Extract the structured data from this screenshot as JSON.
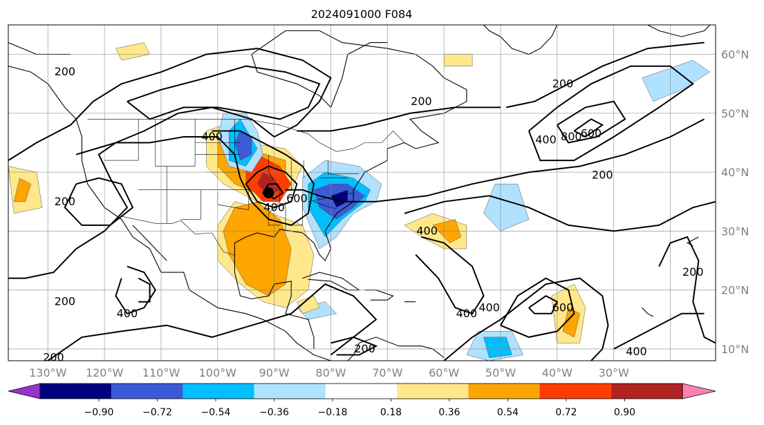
{
  "title": "2024091000 F084",
  "colors": {
    "map_border": "#000000",
    "gridline": "#808080",
    "coast": "#000000",
    "contour": "#000000",
    "marker": "#000000"
  },
  "map": {
    "lon_range": [
      -137,
      -12
    ],
    "lat_range": [
      8,
      65
    ],
    "lon_ticks": [
      {
        "lon": -130,
        "label": "130°W"
      },
      {
        "lon": -120,
        "label": "120°W"
      },
      {
        "lon": -110,
        "label": "110°W"
      },
      {
        "lon": -100,
        "label": "100°W"
      },
      {
        "lon": -90,
        "label": "90°W"
      },
      {
        "lon": -80,
        "label": "80°W"
      },
      {
        "lon": -70,
        "label": "70°W"
      },
      {
        "lon": -60,
        "label": "60°W"
      },
      {
        "lon": -50,
        "label": "50°W"
      },
      {
        "lon": -40,
        "label": "40°W"
      },
      {
        "lon": -30,
        "label": "30°W"
      }
    ],
    "lat_ticks": [
      {
        "lat": 60,
        "label": "60°N"
      },
      {
        "lat": 50,
        "label": "50°N"
      },
      {
        "lat": 40,
        "label": "40°N"
      },
      {
        "lat": 30,
        "label": "30°N"
      },
      {
        "lat": 20,
        "label": "20°N"
      },
      {
        "lat": 10,
        "label": "10°N"
      }
    ],
    "storm_center": {
      "lon": -91,
      "lat": 36.5,
      "icon": "filled-circle-marker"
    },
    "contour_labels": [
      {
        "text": "200",
        "lon": -127,
        "lat": 57
      },
      {
        "text": "200",
        "lon": -127,
        "lat": 35
      },
      {
        "text": "200",
        "lon": -127,
        "lat": 18
      },
      {
        "text": "200",
        "lon": -129,
        "lat": 8.5
      },
      {
        "text": "400",
        "lon": -101,
        "lat": 46
      },
      {
        "text": "400",
        "lon": -90,
        "lat": 34
      },
      {
        "text": "600",
        "lon": -86,
        "lat": 35.5
      },
      {
        "text": "400",
        "lon": -116,
        "lat": 16
      },
      {
        "text": "200",
        "lon": -74,
        "lat": 10
      },
      {
        "text": "200",
        "lon": -64,
        "lat": 52
      },
      {
        "text": "200",
        "lon": -39,
        "lat": 55
      },
      {
        "text": "400",
        "lon": -42,
        "lat": 45.5
      },
      {
        "text": "800",
        "lon": -37.5,
        "lat": 46
      },
      {
        "text": "600",
        "lon": -34,
        "lat": 46.5
      },
      {
        "text": "200",
        "lon": -32,
        "lat": 39.5
      },
      {
        "text": "400",
        "lon": -63,
        "lat": 30
      },
      {
        "text": "200",
        "lon": -16,
        "lat": 23
      },
      {
        "text": "400",
        "lon": -56,
        "lat": 16
      },
      {
        "text": "400",
        "lon": -52,
        "lat": 17
      },
      {
        "text": "600",
        "lon": -39,
        "lat": 17
      },
      {
        "text": "400",
        "lon": -26,
        "lat": 9.5
      }
    ]
  },
  "colorbar": {
    "ticks": [
      "−0.90",
      "−0.72",
      "−0.54",
      "−0.36",
      "−0.18",
      "0.18",
      "0.36",
      "0.54",
      "0.72",
      "0.90"
    ],
    "under_color": "#9932cc",
    "bins": [
      "#000080",
      "#3b5bd6",
      "#00bfff",
      "#b0e2ff",
      "#ffffff",
      "#ffe88c",
      "#ffa500",
      "#ff3d00",
      "#b22222"
    ],
    "over_color": "#ff80b0",
    "extend": "both"
  },
  "shading_colors": {
    "neg_1": "#b0e2ff",
    "neg_2": "#00bfff",
    "neg_3": "#3b5bd6",
    "neg_4": "#000080",
    "pos_1": "#ffe88c",
    "pos_2": "#ffa500",
    "pos_3": "#ff3d00",
    "pos_4": "#b22222"
  }
}
